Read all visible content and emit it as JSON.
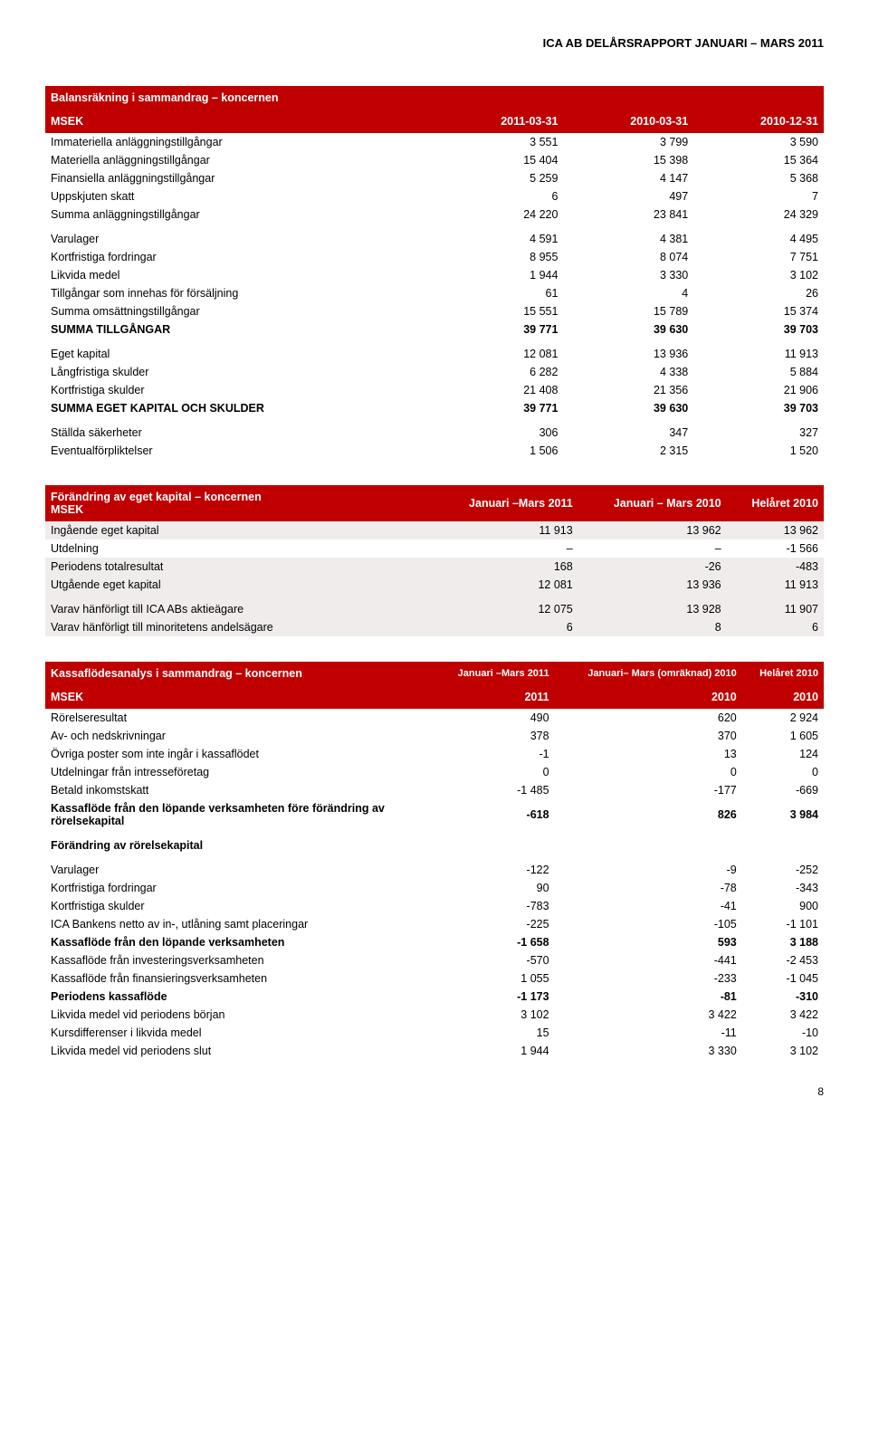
{
  "colors": {
    "header_bg": "#c00000",
    "header_fg": "#ffffff",
    "shaded_bg": "#f0ecec",
    "text": "#000000"
  },
  "header": {
    "title": "ICA AB DELÅRSRAPPORT JANUARI – MARS 2011"
  },
  "tableA": {
    "title": "Balansräkning i sammandrag – koncernen",
    "currency": "MSEK",
    "cols": [
      "2011-03-31",
      "2010-03-31",
      "2010-12-31"
    ],
    "rows": [
      {
        "label": "Immateriella anläggningstillgångar",
        "v": [
          "3 551",
          "3 799",
          "3 590"
        ]
      },
      {
        "label": "Materiella anläggningstillgångar",
        "v": [
          "15 404",
          "15 398",
          "15 364"
        ]
      },
      {
        "label": "Finansiella anläggningstillgångar",
        "v": [
          "5 259",
          "4 147",
          "5 368"
        ]
      },
      {
        "label": "Uppskjuten skatt",
        "v": [
          "6",
          "497",
          "7"
        ]
      },
      {
        "label": "Summa anläggningstillgångar",
        "v": [
          "24 220",
          "23 841",
          "24 329"
        ]
      },
      {
        "label": "Varulager",
        "v": [
          "4 591",
          "4 381",
          "4 495"
        ],
        "gap": true
      },
      {
        "label": "Kortfristiga fordringar",
        "v": [
          "8 955",
          "8 074",
          "7 751"
        ]
      },
      {
        "label": "Likvida medel",
        "v": [
          "1 944",
          "3 330",
          "3 102"
        ]
      },
      {
        "label": "Tillgångar som innehas för försäljning",
        "v": [
          "61",
          "4",
          "26"
        ]
      },
      {
        "label": "Summa omsättningstillgångar",
        "v": [
          "15 551",
          "15 789",
          "15 374"
        ]
      },
      {
        "label": "SUMMA TILLGÅNGAR",
        "v": [
          "39 771",
          "39 630",
          "39 703"
        ],
        "bold": true
      },
      {
        "label": "Eget kapital",
        "v": [
          "12 081",
          "13 936",
          "11 913"
        ],
        "gap": true
      },
      {
        "label": "Långfristiga skulder",
        "v": [
          "6 282",
          "4 338",
          "5 884"
        ]
      },
      {
        "label": "Kortfristiga skulder",
        "v": [
          "21 408",
          "21 356",
          "21 906"
        ]
      },
      {
        "label": "SUMMA EGET KAPITAL OCH SKULDER",
        "v": [
          "39 771",
          "39 630",
          "39 703"
        ],
        "bold": true
      },
      {
        "label": "Ställda säkerheter",
        "v": [
          "306",
          "347",
          "327"
        ],
        "gap": true
      },
      {
        "label": "Eventualförpliktelser",
        "v": [
          "1 506",
          "2 315",
          "1 520"
        ]
      }
    ]
  },
  "tableB": {
    "title": "Förändring av eget kapital – koncernen",
    "currency": "MSEK",
    "cols": [
      "Januari –Mars 2011",
      "Januari – Mars 2010",
      "Helåret 2010"
    ],
    "rows": [
      {
        "label": "Ingående eget kapital",
        "v": [
          "11 913",
          "13 962",
          "13 962"
        ],
        "shaded": true
      },
      {
        "label": "Utdelning",
        "v": [
          "–",
          "–",
          "-1 566"
        ]
      },
      {
        "label": "Periodens totalresultat",
        "v": [
          "168",
          "-26",
          "-483"
        ],
        "shaded": true
      },
      {
        "label": "Utgående eget kapital",
        "v": [
          "12 081",
          "13 936",
          "11 913"
        ],
        "shaded": true
      },
      {
        "label": "Varav hänförligt till ICA ABs aktieägare",
        "v": [
          "12 075",
          "13 928",
          "11 907"
        ],
        "gap": true,
        "shaded": true
      },
      {
        "label": "Varav hänförligt till minoritetens andelsägare",
        "v": [
          "6",
          "8",
          "6"
        ],
        "shaded": true
      }
    ]
  },
  "tableC": {
    "title": "Kassaflödesanalys i sammandrag – koncernen",
    "currency": "MSEK",
    "top_cols": [
      "Januari –Mars 2011",
      "Januari– Mars (omräknad) 2010",
      "Helåret 2010"
    ],
    "cols": [
      "2011",
      "2010",
      "2010"
    ],
    "rows": [
      {
        "label": "Rörelseresultat",
        "v": [
          "490",
          "620",
          "2 924"
        ]
      },
      {
        "label": "Av- och nedskrivningar",
        "v": [
          "378",
          "370",
          "1 605"
        ]
      },
      {
        "label": "Övriga poster som inte ingår i kassaflödet",
        "v": [
          "-1",
          "13",
          "124"
        ]
      },
      {
        "label": "Utdelningar från intresseföretag",
        "v": [
          "0",
          "0",
          "0"
        ]
      },
      {
        "label": "Betald inkomstskatt",
        "v": [
          "-1 485",
          "-177",
          "-669"
        ]
      },
      {
        "label": "Kassaflöde från den löpande verksamheten före förändring av rörelsekapital",
        "v": [
          "-618",
          "826",
          "3 984"
        ],
        "bold": true
      },
      {
        "label": "Förändring av rörelsekapital",
        "v": [
          "",
          "",
          ""
        ],
        "gap": true,
        "bold": true
      },
      {
        "label": "Varulager",
        "v": [
          "-122",
          "-9",
          "-252"
        ],
        "gap": true
      },
      {
        "label": "Kortfristiga fordringar",
        "v": [
          "90",
          "-78",
          "-343"
        ]
      },
      {
        "label": "Kortfristiga skulder",
        "v": [
          "-783",
          "-41",
          "900"
        ]
      },
      {
        "label": "ICA Bankens netto av in-, utlåning samt placeringar",
        "v": [
          "-225",
          "-105",
          "-1 101"
        ]
      },
      {
        "label": "Kassaflöde från den löpande verksamheten",
        "v": [
          "-1 658",
          "593",
          "3 188"
        ],
        "bold": true
      },
      {
        "label": "Kassaflöde från investeringsverksamheten",
        "v": [
          "-570",
          "-441",
          "-2 453"
        ]
      },
      {
        "label": "Kassaflöde från finansieringsverksamheten",
        "v": [
          "1 055",
          "-233",
          "-1 045"
        ]
      },
      {
        "label": "Periodens kassaflöde",
        "v": [
          "-1 173",
          "-81",
          "-310"
        ],
        "bold": true
      },
      {
        "label": "Likvida medel vid periodens början",
        "v": [
          "3 102",
          "3 422",
          "3 422"
        ]
      },
      {
        "label": "Kursdifferenser i likvida medel",
        "v": [
          "15",
          "-11",
          "-10"
        ]
      },
      {
        "label": "Likvida medel vid periodens slut",
        "v": [
          "1 944",
          "3 330",
          "3 102"
        ]
      }
    ]
  },
  "page_number": "8"
}
